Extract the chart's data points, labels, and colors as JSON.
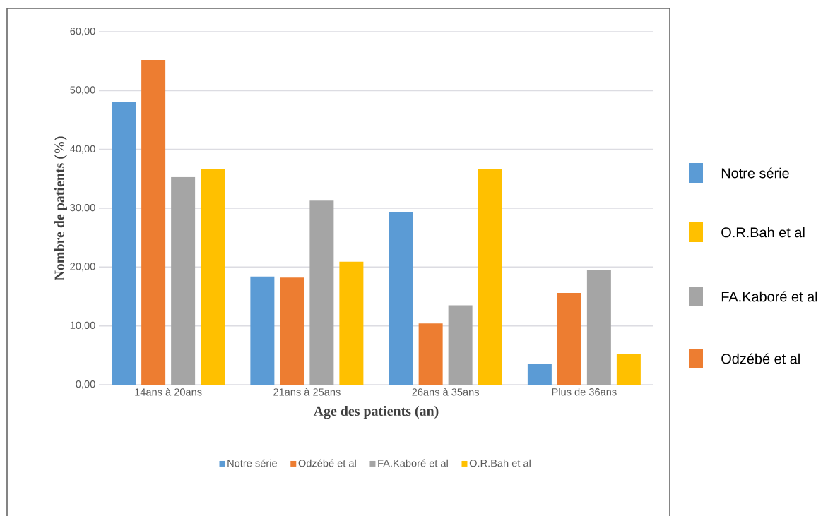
{
  "chart_data": {
    "type": "bar",
    "xlabel": "Age des patients (an)",
    "ylabel": "Nombre de patients (%)",
    "categories": [
      "14ans à 20ans",
      "21ans à 25ans",
      "26ans à 35ans",
      "Plus de 36ans"
    ],
    "series": [
      {
        "name": "Notre série",
        "color": "#5b9bd5",
        "values": [
          48.1,
          18.4,
          29.4,
          3.6
        ]
      },
      {
        "name": "Odzébé et al",
        "color": "#ed7d31",
        "values": [
          55.2,
          18.2,
          10.4,
          15.6
        ]
      },
      {
        "name": "FA.Kaboré et al",
        "color": "#a5a5a5",
        "values": [
          35.3,
          31.3,
          13.5,
          19.5
        ]
      },
      {
        "name": "O.R.Bah et al",
        "color": "#ffc000",
        "values": [
          36.7,
          20.9,
          36.7,
          5.2
        ]
      }
    ],
    "ylim": [
      0,
      60
    ],
    "yticks": [
      {
        "value": 0,
        "label": "0,00"
      },
      {
        "value": 10,
        "label": "10,00"
      },
      {
        "value": 20,
        "label": "20,00"
      },
      {
        "value": 30,
        "label": "30,00"
      },
      {
        "value": 40,
        "label": "40,00"
      },
      {
        "value": 50,
        "label": "50,00"
      },
      {
        "value": 60,
        "label": "60,00"
      }
    ],
    "grid": "y",
    "legend": "bottom"
  }
}
